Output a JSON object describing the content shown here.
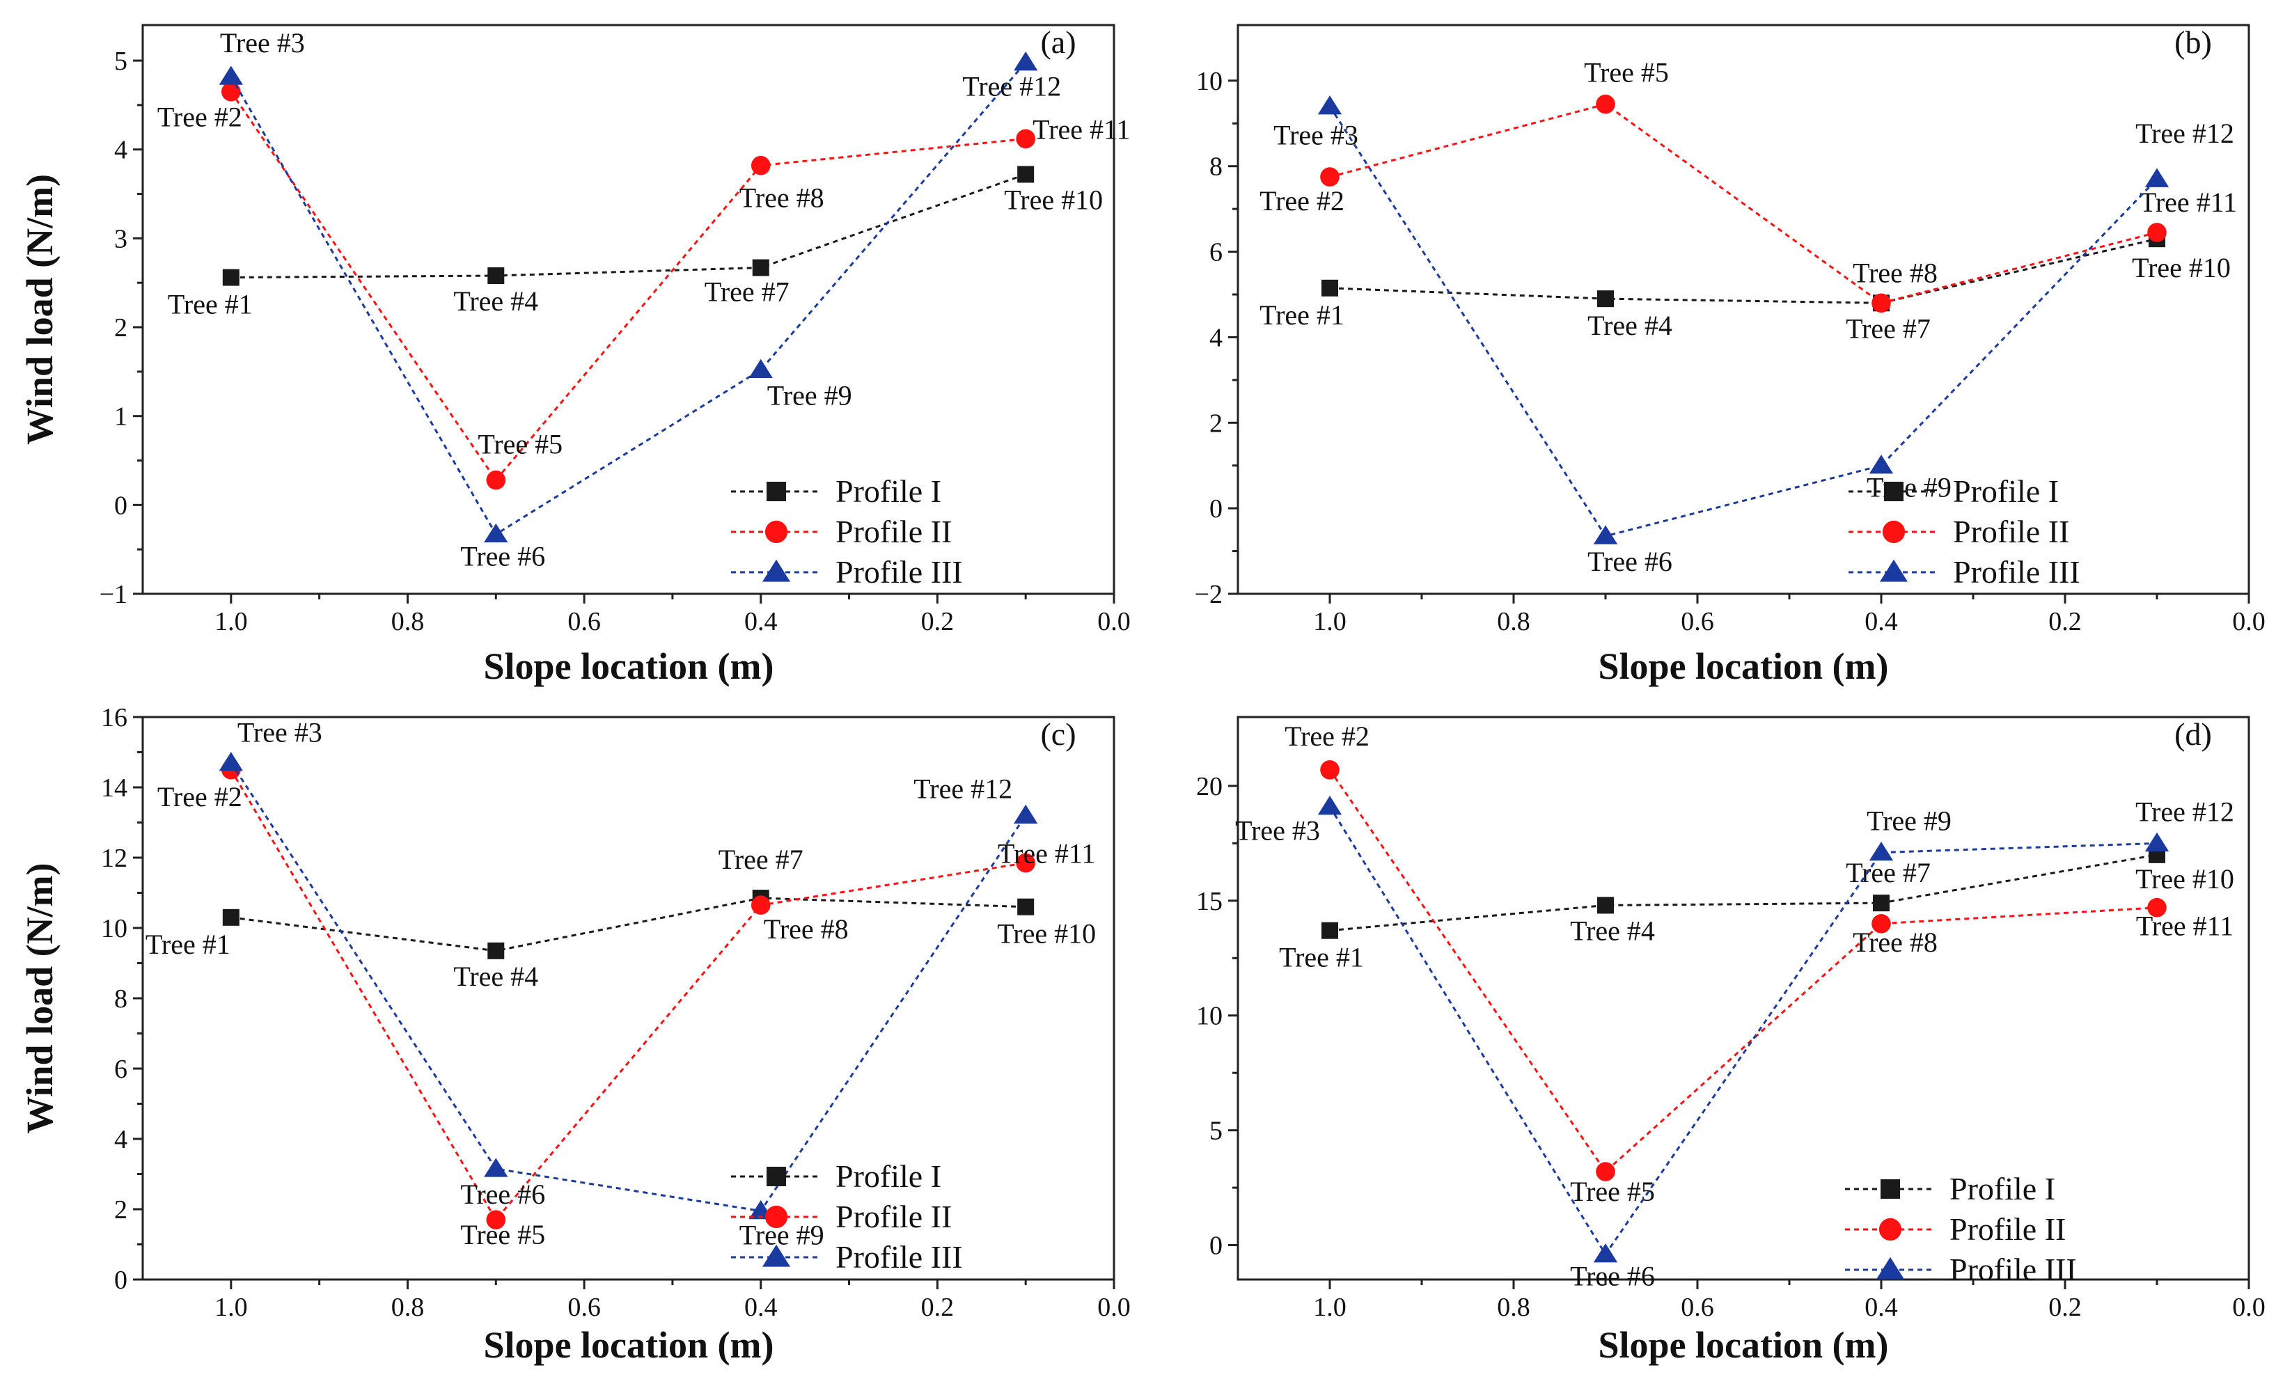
{
  "figure": {
    "x_axis_title": "Slope location (m)",
    "y_axis_title": "Wind load (N/m)"
  },
  "legend": [
    {
      "name": "Profile I",
      "color": "#1a1a1a",
      "marker": "square"
    },
    {
      "name": "Profile II",
      "color": "#ff1111",
      "marker": "circle"
    },
    {
      "name": "Profile III",
      "color": "#1b3aa0",
      "marker": "triangle"
    }
  ],
  "chart_data": [
    {
      "type": "line",
      "panel": "(a)",
      "xlabel": "Slope location (m)",
      "ylabel": "Wind load (N/m)",
      "xlim": [
        1.1,
        0.0
      ],
      "xticks": [
        1.0,
        0.8,
        0.6,
        0.4,
        0.2,
        0.0
      ],
      "ylim": [
        -1,
        5.4
      ],
      "yticks": [
        -1,
        0,
        1,
        2,
        3,
        4,
        5
      ],
      "x_reversed": true,
      "legend_position": "bottom-right",
      "series": [
        {
          "name": "Profile I",
          "color": "#1a1a1a",
          "marker": "square",
          "points": [
            {
              "x": 1.0,
              "y": 2.56,
              "label": "Tree #1"
            },
            {
              "x": 0.7,
              "y": 2.58,
              "label": "Tree #4"
            },
            {
              "x": 0.4,
              "y": 2.67,
              "label": "Tree #7"
            },
            {
              "x": 0.1,
              "y": 3.72,
              "label": "Tree #10"
            }
          ]
        },
        {
          "name": "Profile II",
          "color": "#ff1111",
          "marker": "circle",
          "points": [
            {
              "x": 1.0,
              "y": 4.65,
              "label": "Tree #2"
            },
            {
              "x": 0.7,
              "y": 0.28,
              "label": "Tree #5"
            },
            {
              "x": 0.4,
              "y": 3.82,
              "label": "Tree #8"
            },
            {
              "x": 0.1,
              "y": 4.12,
              "label": "Tree #11"
            }
          ]
        },
        {
          "name": "Profile III",
          "color": "#1b3aa0",
          "marker": "triangle",
          "points": [
            {
              "x": 1.0,
              "y": 4.82,
              "label": "Tree #3"
            },
            {
              "x": 0.7,
              "y": -0.33,
              "label": "Tree #6"
            },
            {
              "x": 0.4,
              "y": 1.52,
              "label": "Tree #9"
            },
            {
              "x": 0.1,
              "y": 4.98,
              "label": "Tree #12"
            }
          ]
        }
      ]
    },
    {
      "type": "line",
      "panel": "(b)",
      "xlabel": "Slope location (m)",
      "ylabel": "",
      "xlim": [
        1.1,
        0.0
      ],
      "xticks": [
        1.0,
        0.8,
        0.6,
        0.4,
        0.2,
        0.0
      ],
      "ylim": [
        -2,
        11.3
      ],
      "yticks": [
        -2,
        0,
        2,
        4,
        6,
        8,
        10
      ],
      "x_reversed": true,
      "legend_position": "bottom-right",
      "series": [
        {
          "name": "Profile I",
          "color": "#1a1a1a",
          "marker": "square",
          "points": [
            {
              "x": 1.0,
              "y": 5.15,
              "label": "Tree #1"
            },
            {
              "x": 0.7,
              "y": 4.9,
              "label": "Tree #4"
            },
            {
              "x": 0.4,
              "y": 4.8,
              "label": "Tree #7"
            },
            {
              "x": 0.1,
              "y": 6.3,
              "label": "Tree #10"
            }
          ]
        },
        {
          "name": "Profile II",
          "color": "#ff1111",
          "marker": "circle",
          "points": [
            {
              "x": 1.0,
              "y": 7.75,
              "label": "Tree #2"
            },
            {
              "x": 0.7,
              "y": 9.45,
              "label": "Tree #5"
            },
            {
              "x": 0.4,
              "y": 4.8,
              "label": "Tree #8"
            },
            {
              "x": 0.1,
              "y": 6.45,
              "label": "Tree #11"
            }
          ]
        },
        {
          "name": "Profile III",
          "color": "#1b3aa0",
          "marker": "triangle",
          "points": [
            {
              "x": 1.0,
              "y": 9.4,
              "label": "Tree #3"
            },
            {
              "x": 0.7,
              "y": -0.65,
              "label": "Tree #6"
            },
            {
              "x": 0.4,
              "y": 1.0,
              "label": "Tree #9"
            },
            {
              "x": 0.1,
              "y": 7.7,
              "label": "Tree #12"
            }
          ]
        }
      ]
    },
    {
      "type": "line",
      "panel": "(c)",
      "xlabel": "Slope location (m)",
      "ylabel": "Wind load (N/m)",
      "xlim": [
        1.1,
        0.0
      ],
      "xticks": [
        1.0,
        0.8,
        0.6,
        0.4,
        0.2,
        0.0
      ],
      "ylim": [
        0,
        16
      ],
      "yticks": [
        0,
        2,
        4,
        6,
        8,
        10,
        12,
        14,
        16
      ],
      "x_reversed": true,
      "legend_position": "bottom-right",
      "series": [
        {
          "name": "Profile I",
          "color": "#1a1a1a",
          "marker": "square",
          "points": [
            {
              "x": 1.0,
              "y": 10.3,
              "label": "Tree #1"
            },
            {
              "x": 0.7,
              "y": 9.35,
              "label": "Tree #4"
            },
            {
              "x": 0.4,
              "y": 10.85,
              "label": "Tree #7"
            },
            {
              "x": 0.1,
              "y": 10.6,
              "label": "Tree #10"
            }
          ]
        },
        {
          "name": "Profile II",
          "color": "#ff1111",
          "marker": "circle",
          "points": [
            {
              "x": 1.0,
              "y": 14.5,
              "label": "Tree #2"
            },
            {
              "x": 0.7,
              "y": 1.7,
              "label": "Tree #5"
            },
            {
              "x": 0.4,
              "y": 10.65,
              "label": "Tree #8"
            },
            {
              "x": 0.1,
              "y": 11.85,
              "label": "Tree #11"
            }
          ]
        },
        {
          "name": "Profile III",
          "color": "#1b3aa0",
          "marker": "triangle",
          "points": [
            {
              "x": 1.0,
              "y": 14.7,
              "label": "Tree #3"
            },
            {
              "x": 0.7,
              "y": 3.15,
              "label": "Tree #6"
            },
            {
              "x": 0.4,
              "y": 1.95,
              "label": "Tree #9"
            },
            {
              "x": 0.1,
              "y": 13.2,
              "label": "Tree #12"
            }
          ]
        }
      ]
    },
    {
      "type": "line",
      "panel": "(d)",
      "xlabel": "Slope location (m)",
      "ylabel": "",
      "xlim": [
        1.1,
        0.0
      ],
      "xticks": [
        1.0,
        0.8,
        0.6,
        0.4,
        0.2,
        0.0
      ],
      "ylim": [
        -1.5,
        23
      ],
      "yticks": [
        0,
        5,
        10,
        15,
        20
      ],
      "x_reversed": true,
      "legend_position": "bottom-right",
      "series": [
        {
          "name": "Profile I",
          "color": "#1a1a1a",
          "marker": "square",
          "points": [
            {
              "x": 1.0,
              "y": 13.7,
              "label": "Tree #1"
            },
            {
              "x": 0.7,
              "y": 14.8,
              "label": "Tree #4"
            },
            {
              "x": 0.4,
              "y": 14.9,
              "label": "Tree #7"
            },
            {
              "x": 0.1,
              "y": 17.0,
              "label": "Tree #10"
            }
          ]
        },
        {
          "name": "Profile II",
          "color": "#ff1111",
          "marker": "circle",
          "points": [
            {
              "x": 1.0,
              "y": 20.7,
              "label": "Tree #2"
            },
            {
              "x": 0.7,
              "y": 3.2,
              "label": "Tree #5"
            },
            {
              "x": 0.4,
              "y": 14.0,
              "label": "Tree #8"
            },
            {
              "x": 0.1,
              "y": 14.7,
              "label": "Tree #11"
            }
          ]
        },
        {
          "name": "Profile III",
          "color": "#1b3aa0",
          "marker": "triangle",
          "points": [
            {
              "x": 1.0,
              "y": 19.1,
              "label": "Tree #3"
            },
            {
              "x": 0.7,
              "y": -0.4,
              "label": "Tree #6"
            },
            {
              "x": 0.4,
              "y": 17.1,
              "label": "Tree #9"
            },
            {
              "x": 0.1,
              "y": 17.5,
              "label": "Tree #12"
            }
          ]
        }
      ]
    }
  ]
}
